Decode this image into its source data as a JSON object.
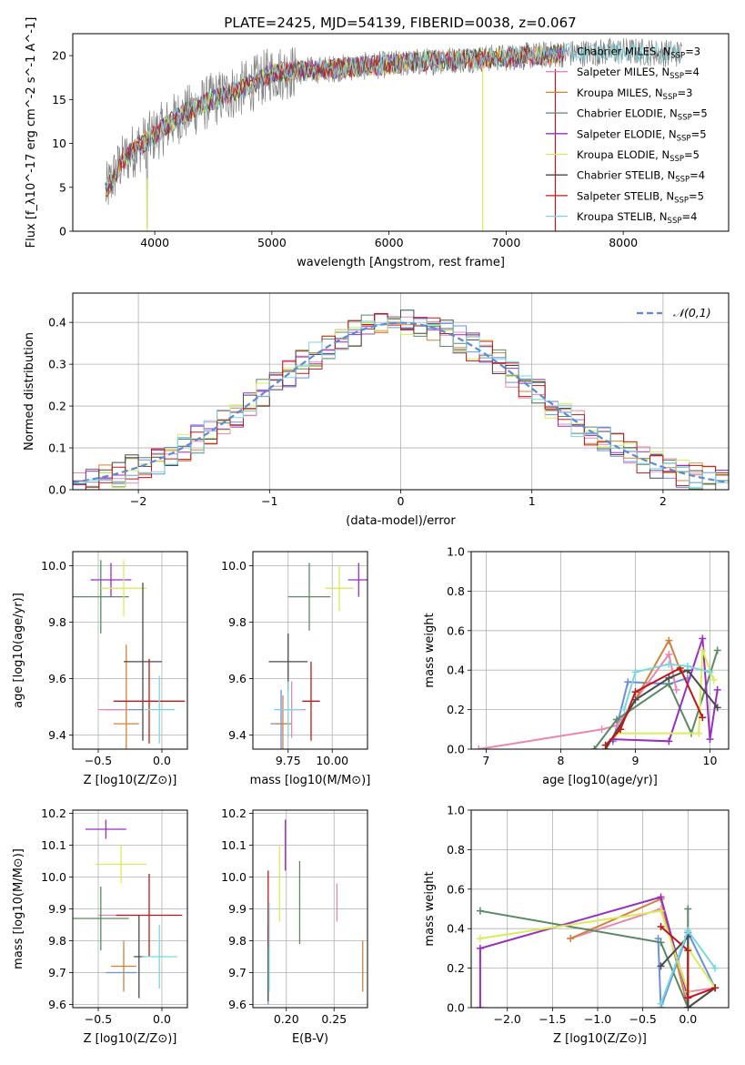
{
  "figure_title": "PLATE=2425, MJD=54139, FIBERID=0038, z=0.067",
  "series_styles": [
    {
      "name": "Chabrier MILES",
      "nssp": "3",
      "color": "#6b8fe0"
    },
    {
      "name": "Salpeter MILES",
      "nssp": "4",
      "color": "#e888b0"
    },
    {
      "name": "Kroupa MILES",
      "nssp": "3",
      "color": "#d0823c"
    },
    {
      "name": "Chabrier ELODIE",
      "nssp": "5",
      "color": "#5a8a64"
    },
    {
      "name": "Salpeter ELODIE",
      "nssp": "5",
      "color": "#9a2ec0"
    },
    {
      "name": "Kroupa ELODIE",
      "nssp": "5",
      "color": "#d9ec5a"
    },
    {
      "name": "Chabrier STELIB",
      "nssp": "4",
      "color": "#4a4a4a"
    },
    {
      "name": "Salpeter STELIB",
      "nssp": "5",
      "color": "#c01818"
    },
    {
      "name": "Kroupa STELIB",
      "nssp": "4",
      "color": "#7ad7df"
    }
  ],
  "chart_data": [
    {
      "id": "spectrum",
      "type": "line",
      "xlabel": "wavelength [Angstrom, rest frame]",
      "ylabel": "Flux [f_λ10^-17 erg cm^-2 s^-1 A^-1]",
      "xlim": [
        3300,
        8900
      ],
      "ylim": [
        0,
        22.5
      ],
      "xticks": [
        4000,
        5000,
        6000,
        7000,
        8000
      ],
      "yticks": [
        0,
        5,
        10,
        15,
        20
      ],
      "grid": false,
      "legend": "upper-right",
      "x_range_data": [
        3580,
        8500
      ],
      "envelope": {
        "x": [
          3580,
          3700,
          3800,
          4000,
          4200,
          4500,
          4800,
          5000,
          5500,
          6000,
          6500,
          7000,
          7500,
          8000,
          8500
        ],
        "y": [
          4.5,
          7.5,
          9,
          11,
          13,
          15,
          16.5,
          18,
          18.5,
          19,
          19.5,
          19.8,
          20.2,
          20.5,
          20.2
        ]
      },
      "dips": [
        {
          "x": 3934,
          "y": 0
        },
        {
          "x": 6800,
          "y": 0
        },
        {
          "x": 7420,
          "y": 0
        }
      ]
    },
    {
      "id": "residuals",
      "type": "histogram",
      "xlabel": "(data-model)/error",
      "ylabel": "Normed distribution",
      "xlim": [
        -2.5,
        2.5
      ],
      "ylim": [
        0,
        0.47
      ],
      "xticks": [
        -2,
        -1,
        0,
        1,
        2
      ],
      "yticks": [
        0.0,
        0.1,
        0.2,
        0.3,
        0.4
      ],
      "grid": true,
      "legend": "upper-right",
      "reference_curve": {
        "label": "𝒩(0,1)",
        "mu": 0,
        "sigma": 1,
        "style": "dashed",
        "color": "#5b8ad8"
      },
      "bin_width": 0.1
    },
    {
      "id": "age_vs_Z",
      "type": "errorbar",
      "xlabel": "Z [log10(Z/Z⊙)]",
      "ylabel": "age [log10(age/yr)]",
      "xlim": [
        -0.7,
        0.2
      ],
      "ylim": [
        9.35,
        10.05
      ],
      "xticks": [
        -0.5,
        0.0
      ],
      "yticks": [
        9.4,
        9.6,
        9.8,
        10.0
      ],
      "grid": true,
      "points": [
        {
          "x": -0.3,
          "xerr": 0.15,
          "y": 9.49,
          "yerr": 0.0,
          "color": "#6b8fe0"
        },
        {
          "x": -0.38,
          "xerr": 0.12,
          "y": 9.49,
          "yerr": 0.0,
          "color": "#e888b0"
        },
        {
          "x": -0.28,
          "xerr": 0.1,
          "y": 9.44,
          "yerr": 0.28,
          "color": "#d0823c"
        },
        {
          "x": -0.48,
          "xerr": 0.22,
          "y": 9.89,
          "yerr": 0.13,
          "color": "#5a8a64"
        },
        {
          "x": -0.4,
          "xerr": 0.16,
          "y": 9.95,
          "yerr": 0.06,
          "color": "#9a2ec0"
        },
        {
          "x": -0.3,
          "xerr": 0.18,
          "y": 9.92,
          "yerr": 0.1,
          "color": "#d9ec5a"
        },
        {
          "x": -0.15,
          "xerr": 0.15,
          "y": 9.66,
          "yerr": 0.28,
          "color": "#4a4a4a"
        },
        {
          "x": -0.1,
          "xerr": 0.28,
          "y": 9.52,
          "yerr": 0.15,
          "color": "#c01818"
        },
        {
          "x": -0.02,
          "xerr": 0.12,
          "y": 9.49,
          "yerr": 0.12,
          "color": "#7ad7df"
        }
      ]
    },
    {
      "id": "age_vs_mass",
      "type": "errorbar",
      "xlabel": "mass [log10(M/M⊙)]",
      "ylabel": "",
      "xlim": [
        9.55,
        10.2
      ],
      "ylim": [
        9.35,
        10.05
      ],
      "xticks": [
        9.75,
        10.0
      ],
      "yticks": [
        9.4,
        9.6,
        9.8,
        10.0
      ],
      "grid": true,
      "points": [
        {
          "x": 9.71,
          "xerr": 0.06,
          "y": 9.44,
          "yerr": 0.12,
          "color": "#6b8fe0"
        },
        {
          "x": 9.77,
          "xerr": 0.08,
          "y": 9.49,
          "yerr": 0.1,
          "color": "#e888b0"
        },
        {
          "x": 9.72,
          "xerr": 0.04,
          "y": 9.44,
          "yerr": 0.1,
          "color": "#d0823c"
        },
        {
          "x": 9.87,
          "xerr": 0.12,
          "y": 9.89,
          "yerr": 0.12,
          "color": "#5a8a64"
        },
        {
          "x": 10.15,
          "xerr": 0.06,
          "y": 9.95,
          "yerr": 0.06,
          "color": "#9a2ec0"
        },
        {
          "x": 10.04,
          "xerr": 0.08,
          "y": 9.92,
          "yerr": 0.08,
          "color": "#d9ec5a"
        },
        {
          "x": 9.75,
          "xerr": 0.11,
          "y": 9.66,
          "yerr": 0.1,
          "color": "#4a4a4a"
        },
        {
          "x": 9.88,
          "xerr": 0.05,
          "y": 9.52,
          "yerr": 0.14,
          "color": "#c01818"
        },
        {
          "x": 9.75,
          "xerr": 0.08,
          "y": 9.49,
          "yerr": 0.1,
          "color": "#7ad7df"
        }
      ]
    },
    {
      "id": "mass_weight_vs_age",
      "type": "line",
      "xlabel": "age [log10(age/yr)]",
      "ylabel": "mass weight",
      "xlim": [
        6.8,
        10.25
      ],
      "ylim": [
        0,
        1.0
      ],
      "xticks": [
        7,
        8,
        9,
        10
      ],
      "yticks": [
        0.0,
        0.2,
        0.4,
        0.6,
        0.8,
        1.0
      ],
      "grid": true,
      "lines": [
        {
          "color": "#6b8fe0",
          "x": [
            8.7,
            8.9,
            9.45,
            9.7
          ],
          "y": [
            0.04,
            0.34,
            0.33,
            0.36
          ]
        },
        {
          "color": "#e888b0",
          "x": [
            6.9,
            8.55,
            8.75,
            9.45,
            9.55
          ],
          "y": [
            0.0,
            0.1,
            0.12,
            0.48,
            0.3
          ]
        },
        {
          "color": "#d0823c",
          "x": [
            8.7,
            9.45,
            9.6
          ],
          "y": [
            0.05,
            0.55,
            0.4
          ]
        },
        {
          "color": "#5a8a64",
          "x": [
            8.45,
            8.75,
            9.45,
            9.75,
            10.1
          ],
          "y": [
            0.0,
            0.15,
            0.33,
            0.08,
            0.5
          ]
        },
        {
          "color": "#9a2ec0",
          "x": [
            8.7,
            9.45,
            9.9,
            10.0,
            10.1
          ],
          "y": [
            0.05,
            0.04,
            0.56,
            0.05,
            0.3
          ]
        },
        {
          "color": "#d9ec5a",
          "x": [
            8.75,
            9.85,
            9.9,
            10.05
          ],
          "y": [
            0.08,
            0.08,
            0.5,
            0.35
          ]
        },
        {
          "color": "#4a4a4a",
          "x": [
            8.6,
            9.0,
            9.45,
            9.7,
            10.1
          ],
          "y": [
            0.0,
            0.25,
            0.36,
            0.4,
            0.21
          ]
        },
        {
          "color": "#c01818",
          "x": [
            8.6,
            8.8,
            9.0,
            9.6,
            9.9
          ],
          "y": [
            0.02,
            0.1,
            0.29,
            0.41,
            0.16
          ]
        },
        {
          "color": "#7ad7df",
          "x": [
            8.85,
            9.0,
            9.45,
            9.7,
            10.0
          ],
          "y": [
            0.2,
            0.39,
            0.43,
            0.42,
            0.39
          ]
        }
      ]
    },
    {
      "id": "mass_vs_Z",
      "type": "errorbar",
      "xlabel": "Z [log10(Z/Z⊙)]",
      "ylabel": "mass [log10(M/M⊙)]",
      "xlim": [
        -0.7,
        0.2
      ],
      "ylim": [
        9.59,
        10.21
      ],
      "xticks": [
        -0.5,
        0.0
      ],
      "yticks": [
        9.6,
        9.7,
        9.8,
        9.9,
        10.0,
        10.1,
        10.2
      ],
      "grid": true,
      "points": [
        {
          "x": -0.32,
          "xerr": 0.12,
          "y": 9.7,
          "yerr": 0.0,
          "color": "#6b8fe0"
        },
        {
          "x": -0.38,
          "xerr": 0.12,
          "y": 9.88,
          "yerr": 0.0,
          "color": "#e888b0"
        },
        {
          "x": -0.3,
          "xerr": 0.1,
          "y": 9.72,
          "yerr": 0.08,
          "color": "#d0823c"
        },
        {
          "x": -0.48,
          "xerr": 0.22,
          "y": 9.87,
          "yerr": 0.1,
          "color": "#5a8a64"
        },
        {
          "x": -0.44,
          "xerr": 0.16,
          "y": 10.15,
          "yerr": 0.03,
          "color": "#9a2ec0"
        },
        {
          "x": -0.32,
          "xerr": 0.2,
          "y": 10.04,
          "yerr": 0.06,
          "color": "#d9ec5a"
        },
        {
          "x": -0.18,
          "xerr": 0.04,
          "y": 9.75,
          "yerr": 0.13,
          "color": "#4a4a4a"
        },
        {
          "x": -0.1,
          "xerr": 0.26,
          "y": 9.88,
          "yerr": 0.13,
          "color": "#c01818"
        },
        {
          "x": -0.02,
          "xerr": 0.14,
          "y": 9.75,
          "yerr": 0.1,
          "color": "#7ad7df"
        }
      ]
    },
    {
      "id": "mass_vs_ebv",
      "type": "errorbar",
      "xlabel": "E(B-V)",
      "ylabel": "",
      "xlim": [
        0.165,
        0.285
      ],
      "ylim": [
        9.59,
        10.21
      ],
      "xticks": [
        0.2,
        0.25
      ],
      "yticks": [
        9.6,
        9.7,
        9.8,
        9.9,
        10.0,
        10.1,
        10.2
      ],
      "grid": true,
      "points": [
        {
          "x": 0.181,
          "xerr": 0,
          "y": 9.75,
          "yerr": 0.15,
          "color": "#6b8fe0"
        },
        {
          "x": 0.253,
          "xerr": 0,
          "y": 9.92,
          "yerr": 0.06,
          "color": "#e888b0"
        },
        {
          "x": 0.28,
          "xerr": 0,
          "y": 9.72,
          "yerr": 0.08,
          "color": "#d0823c"
        },
        {
          "x": 0.214,
          "xerr": 0,
          "y": 9.92,
          "yerr": 0.13,
          "color": "#5a8a64"
        },
        {
          "x": 0.199,
          "xerr": 0,
          "y": 10.1,
          "yerr": 0.08,
          "color": "#9a2ec0"
        },
        {
          "x": 0.193,
          "xerr": 0,
          "y": 9.98,
          "yerr": 0.12,
          "color": "#d9ec5a"
        },
        {
          "x": 0.181,
          "xerr": 0,
          "y": 9.73,
          "yerr": 0.12,
          "color": "#4a4a4a"
        },
        {
          "x": 0.181,
          "xerr": 0,
          "y": 9.9,
          "yerr": 0.12,
          "color": "#c01818"
        },
        {
          "x": 0.182,
          "xerr": 0,
          "y": 9.78,
          "yerr": 0.14,
          "color": "#7ad7df"
        }
      ]
    },
    {
      "id": "mass_weight_vs_Z",
      "type": "line",
      "xlabel": "Z [log10(Z/Z⊙)]",
      "ylabel": "mass weight",
      "xlim": [
        -2.4,
        0.45
      ],
      "ylim": [
        0,
        1.0
      ],
      "xticks": [
        -2.0,
        -1.5,
        -1.0,
        -0.5,
        0.0
      ],
      "yticks": [
        0.0,
        0.2,
        0.4,
        0.6,
        0.8,
        1.0
      ],
      "grid": true,
      "lines": [
        {
          "color": "#6b8fe0",
          "x": [
            -0.33,
            -0.3,
            0.0,
            0.3
          ],
          "y": [
            0.35,
            0.0,
            0.38,
            0.1
          ]
        },
        {
          "color": "#e888b0",
          "x": [
            -1.3,
            -0.3,
            0.0,
            0.3
          ],
          "y": [
            0.35,
            0.5,
            0.08,
            0.1
          ]
        },
        {
          "color": "#d0823c",
          "x": [
            -1.3,
            -0.3,
            0.0,
            0.3
          ],
          "y": [
            0.35,
            0.55,
            0.0,
            0.1
          ]
        },
        {
          "color": "#5a8a64",
          "x": [
            -2.3,
            -0.3,
            0.0,
            0.0
          ],
          "y": [
            0.49,
            0.33,
            0.0,
            0.5
          ]
        },
        {
          "color": "#9a2ec0",
          "x": [
            -2.3,
            -2.3,
            -0.3,
            0.0,
            0.0
          ],
          "y": [
            0.0,
            0.3,
            0.56,
            0.05,
            0.0
          ]
        },
        {
          "color": "#d9ec5a",
          "x": [
            -2.3,
            -0.3,
            0.0,
            0.0,
            0.3
          ],
          "y": [
            0.35,
            0.49,
            0.08,
            0.3,
            0.1
          ]
        },
        {
          "color": "#4a4a4a",
          "x": [
            -0.3,
            0.0,
            0.0,
            0.3
          ],
          "y": [
            0.21,
            0.36,
            0.0,
            0.1
          ]
        },
        {
          "color": "#c01818",
          "x": [
            -0.3,
            0.0,
            0.0,
            0.3
          ],
          "y": [
            0.41,
            0.29,
            0.05,
            0.1
          ]
        },
        {
          "color": "#7ad7df",
          "x": [
            -0.3,
            0.0,
            0.3
          ],
          "y": [
            0.02,
            0.39,
            0.2
          ]
        }
      ]
    }
  ]
}
